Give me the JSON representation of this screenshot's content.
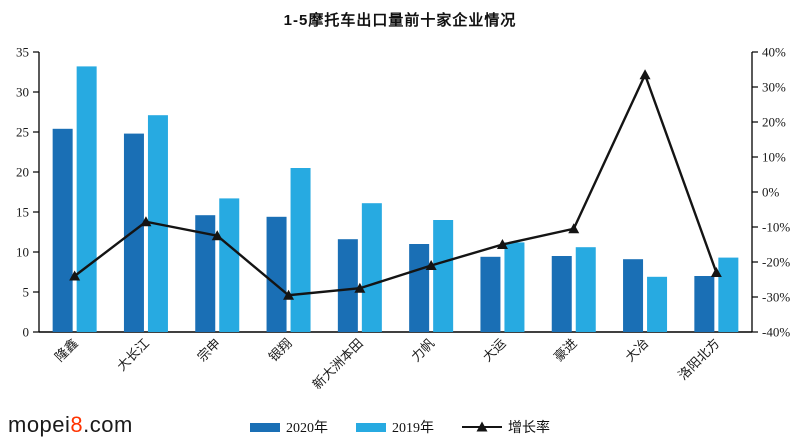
{
  "watermark": {
    "part1": "mopei",
    "part2": "8",
    "part3": ".com",
    "highlight_color": "#ff3300",
    "text_color": "#1a1a1a"
  },
  "chart_data": {
    "type": "bar+line combo",
    "title": "1-5摩托车出口量前十家企业情况",
    "categories": [
      "隆鑫",
      "大长江",
      "宗申",
      "银翔",
      "新大洲本田",
      "力帆",
      "大运",
      "豪进",
      "大冶",
      "洛阳北方"
    ],
    "series": [
      {
        "name": "2020年",
        "color": "#1a6fb5",
        "values": [
          25.4,
          24.8,
          14.6,
          14.4,
          11.6,
          11.0,
          9.4,
          9.5,
          9.1,
          7.0
        ]
      },
      {
        "name": "2019年",
        "color": "#27aae1",
        "values": [
          33.2,
          27.1,
          16.7,
          20.5,
          16.1,
          14.0,
          11.2,
          10.6,
          6.9,
          9.3
        ]
      }
    ],
    "line_series": {
      "name": "增长率",
      "color": "#141414",
      "axis": "right",
      "values": [
        -24,
        -8.5,
        -12.5,
        -29.5,
        -27.5,
        -21,
        -15,
        -10.5,
        33.5,
        -23
      ]
    },
    "left_axis": {
      "min": 0,
      "max": 35,
      "ticks": [
        35,
        30,
        25,
        20,
        15,
        10,
        5,
        0
      ]
    },
    "right_axis": {
      "min": -40,
      "max": 40,
      "tick_values": [
        40,
        30,
        20,
        10,
        0,
        -10,
        -20,
        -30,
        -40
      ],
      "tick_labels": [
        "40%",
        "30%",
        "20%",
        "10%",
        "0%",
        "-10%",
        "-20%",
        "-30%",
        "-40%"
      ]
    },
    "legend": {
      "position": "bottom"
    },
    "grid": false
  }
}
